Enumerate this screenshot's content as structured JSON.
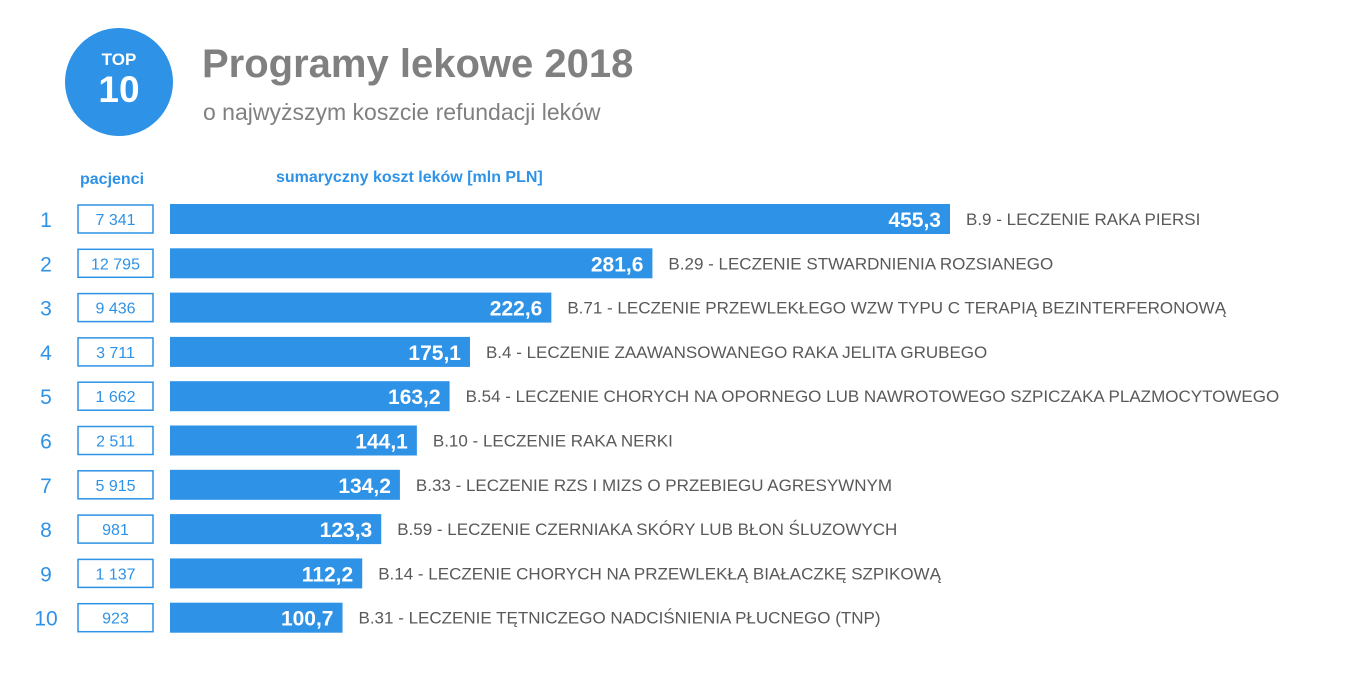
{
  "badge": {
    "top": "TOP",
    "number": "10"
  },
  "header": {
    "title": "Programy lekowe 2018",
    "subtitle": "o najwyższym koszcie refundacji leków"
  },
  "columns": {
    "patients": "pacjenci",
    "cost": "sumaryczny koszt leków [mln PLN]"
  },
  "colors": {
    "accent": "#2e92e6",
    "text_gray": "#595959",
    "title_gray": "#808080"
  },
  "chart_data": {
    "type": "bar",
    "orientation": "horizontal",
    "value_unit": "mln PLN",
    "xlim": [
      0,
      455.3
    ],
    "ranks": [
      "1",
      "2",
      "3",
      "4",
      "5",
      "6",
      "7",
      "8",
      "9",
      "10"
    ],
    "patients": [
      "7 341",
      "12 795",
      "9 436",
      "3 711",
      "1 662",
      "2 511",
      "5 915",
      "981",
      "1 137",
      "923"
    ],
    "values": [
      455.3,
      281.6,
      222.6,
      175.1,
      163.2,
      144.1,
      134.2,
      123.3,
      112.2,
      100.7
    ],
    "value_labels": [
      "455,3",
      "281,6",
      "222,6",
      "175,1",
      "163,2",
      "144,1",
      "134,2",
      "123,3",
      "112,2",
      "100,7"
    ],
    "categories": [
      "B.9 - LECZENIE RAKA PIERSI",
      "B.29 - LECZENIE STWARDNIENIA ROZSIANEGO",
      "B.71 - LECZENIE PRZEWLEKŁEGO WZW TYPU C TERAPIĄ BEZINTERFERONOWĄ",
      "B.4 - LECZENIE ZAAWANSOWANEGO RAKA JELITA GRUBEGO",
      "B.54 - LECZENIE CHORYCH NA OPORNEGO LUB NAWROTOWEGO SZPICZAKA PLAZMOCYTOWEGO",
      "B.10 - LECZENIE RAKA NERKI",
      "B.33 - LECZENIE RZS I MIZS O PRZEBIEGU AGRESYWNYM",
      "B.59 - LECZENIE CZERNIAKA SKÓRY LUB BŁON ŚLUZOWYCH",
      "B.14 - LECZENIE CHORYCH NA PRZEWLEKŁĄ BIAŁACZKĘ SZPIKOWĄ",
      "B.31 - LECZENIE TĘTNICZEGO NADCIŚNIENIA PŁUCNEGO (TNP)"
    ]
  }
}
